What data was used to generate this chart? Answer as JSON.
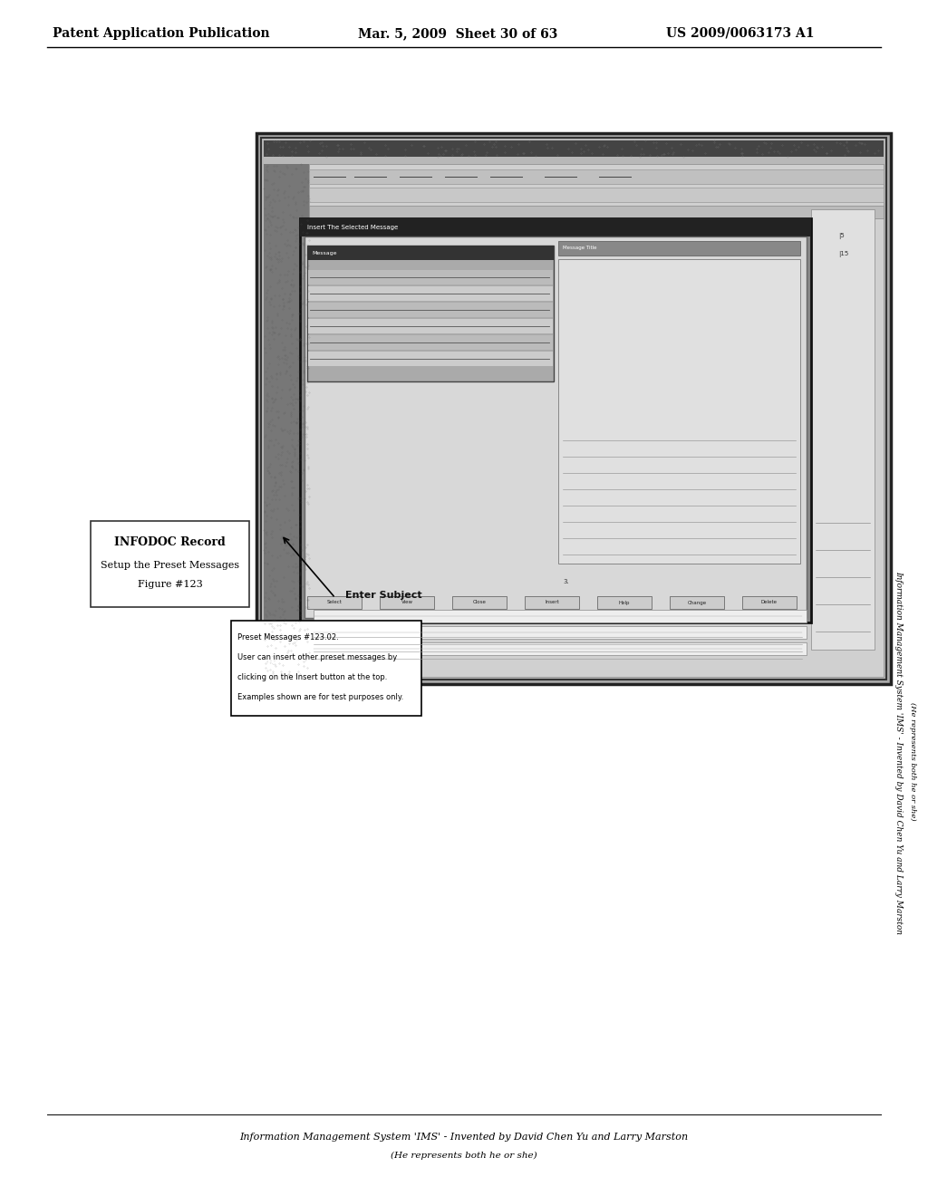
{
  "header_left": "Patent Application Publication",
  "header_mid": "Mar. 5, 2009  Sheet 30 of 63",
  "header_right": "US 2009/0063173 A1",
  "infodoc_title": "INFODOC Record",
  "callout_lines": [
    "Preset Messages #123.02.",
    "User can insert other preset messages by",
    "clicking on the Insert button at the top.",
    "Examples shown are for test purposes only."
  ],
  "footer_line1": "Information Management System 'IMS' - Invented by David Chen Yu and Larry Marston",
  "footer_line2": "(He represents both he or she)",
  "right_vert_line1": "Information Management System 'IMS' - Invented by David Chen Yu and Larry Marston",
  "right_vert_line2": "(He represents both he or she)",
  "bg_color": "#ffffff",
  "text_color": "#000000"
}
